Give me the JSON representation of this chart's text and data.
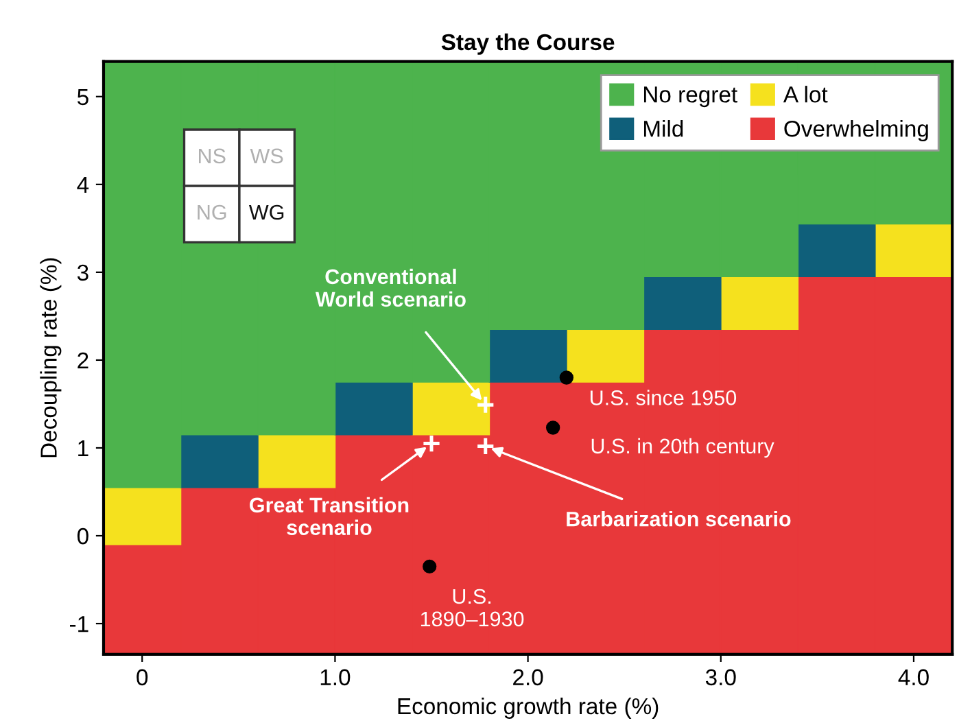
{
  "chart_data": {
    "type": "bar",
    "title": "Stay the Course",
    "xlabel": "Economic growth rate (%)",
    "ylabel": "Decoupling rate (%)",
    "x": [
      0,
      0.4,
      0.8,
      1.2,
      1.6,
      2.0,
      2.4,
      2.8,
      3.2,
      3.6,
      4.0
    ],
    "series": [
      {
        "name": "Overwhelming",
        "color": "#e8383a",
        "base": [
          -1.35,
          -1.35,
          -1.35,
          -1.35,
          -1.35,
          -1.35,
          -1.35,
          -1.35,
          -1.35,
          -1.35,
          -1.35
        ],
        "values": [
          1.25,
          1.9,
          1.9,
          2.5,
          2.5,
          3.1,
          3.1,
          3.7,
          3.7,
          4.3,
          4.3
        ]
      },
      {
        "name": "A lot",
        "color": "#f5e11e",
        "base": [
          -0.1,
          null,
          0.55,
          null,
          1.15,
          null,
          1.75,
          null,
          2.35,
          null,
          2.95
        ],
        "values": [
          0.65,
          null,
          0.6,
          null,
          0.6,
          null,
          0.6,
          null,
          0.6,
          null,
          0.6
        ]
      },
      {
        "name": "Mild",
        "color": "#0f5f7a",
        "base": [
          null,
          0.55,
          null,
          1.15,
          null,
          1.75,
          null,
          2.35,
          null,
          2.95,
          null
        ],
        "values": [
          null,
          0.6,
          null,
          0.6,
          null,
          0.6,
          null,
          0.6,
          null,
          0.6,
          null
        ]
      },
      {
        "name": "No regret",
        "color": "#4db34d",
        "base": [
          0.55,
          1.15,
          1.15,
          1.75,
          1.75,
          2.35,
          2.35,
          2.95,
          2.95,
          3.55,
          3.55
        ],
        "values": [
          4.85,
          4.25,
          4.25,
          3.65,
          3.65,
          3.05,
          3.05,
          2.45,
          2.45,
          1.85,
          1.85
        ]
      },
      {
        "type": "scatter",
        "color": "#000000",
        "marker": "circle",
        "x": [
          2.2,
          2.13,
          1.49
        ],
        "values": [
          1.8,
          1.23,
          -0.35
        ]
      },
      {
        "type": "scatter",
        "color": "#ffffff",
        "marker": "cross",
        "x": [
          1.78,
          1.5,
          1.78
        ],
        "values": [
          1.49,
          1.05,
          1.02
        ]
      }
    ],
    "xlim": [
      -0.2,
      4.2
    ],
    "ylim": [
      -1.35,
      5.4
    ],
    "xticks": [
      0,
      {
        "value": 1,
        "label": "1.0"
      },
      {
        "value": 2,
        "label": "2.0"
      },
      {
        "value": 3,
        "label": "3.0"
      },
      {
        "value": 4,
        "label": "4.0"
      }
    ],
    "yticks": [
      -1,
      0,
      1,
      2,
      3,
      4,
      5
    ],
    "legend": "top right",
    "annotations": [
      {
        "text": "Conventional\nWorld scenario",
        "x": 1.78,
        "y": 1.49
      },
      {
        "text": "Great Transition\nscenario",
        "x": 1.5,
        "y": 1.05
      },
      {
        "text": "Barbarization scenario",
        "x": 1.78,
        "y": 1.02
      },
      {
        "text": "U.S. since 1950",
        "x": 2.2,
        "y": 1.8
      },
      {
        "text": "U.S. in 20th century",
        "x": 2.13,
        "y": 1.23
      },
      {
        "text": "U.S.\n1890–1930",
        "x": 1.49,
        "y": -0.35
      },
      "NS",
      "WS",
      "NG",
      "WG"
    ]
  }
}
